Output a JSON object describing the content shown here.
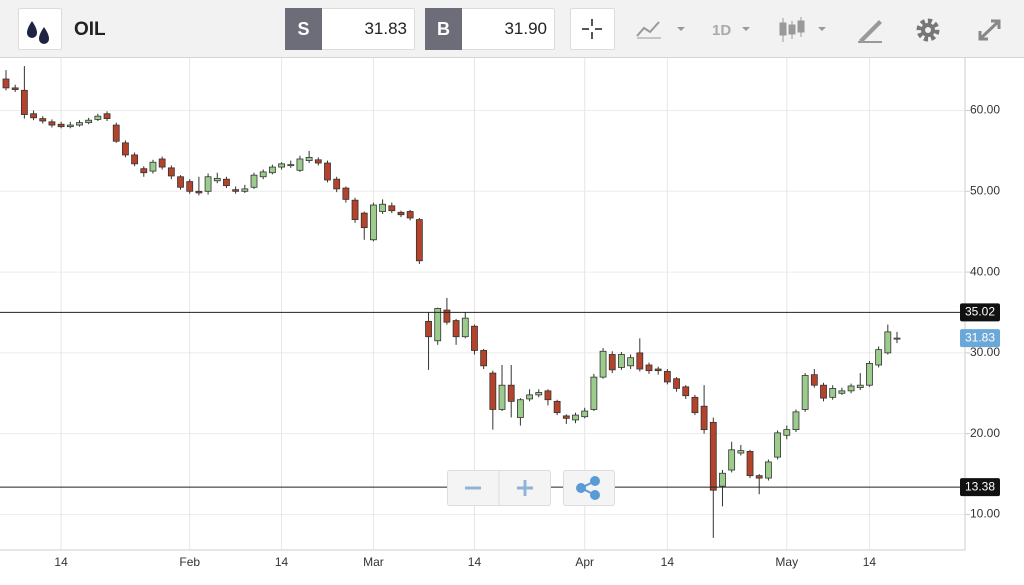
{
  "toolbar": {
    "symbol": "OIL",
    "sell_label": "S",
    "sell_price": "31.83",
    "buy_label": "B",
    "buy_price": "31.90",
    "timeframe": "1D"
  },
  "chart_data": {
    "type": "candlestick",
    "categories": [
      null,
      null,
      null,
      null,
      null,
      null,
      "14",
      null,
      null,
      null,
      null,
      null,
      null,
      null,
      null,
      null,
      null,
      null,
      null,
      null,
      "Feb",
      null,
      null,
      null,
      null,
      null,
      null,
      null,
      null,
      null,
      "14",
      null,
      null,
      null,
      null,
      null,
      null,
      null,
      null,
      null,
      "Mar",
      null,
      null,
      null,
      null,
      null,
      null,
      null,
      null,
      null,
      null,
      "14",
      null,
      null,
      null,
      null,
      null,
      null,
      null,
      null,
      null,
      null,
      null,
      "Apr",
      null,
      null,
      null,
      null,
      null,
      null,
      null,
      null,
      "14",
      null,
      null,
      null,
      null,
      null,
      null,
      null,
      null,
      null,
      null,
      null,
      null,
      "May",
      null,
      null,
      null,
      null,
      null,
      null,
      null,
      null,
      "14",
      null,
      null,
      null
    ],
    "open": [
      63.9,
      62.8,
      62.5,
      59.6,
      59,
      58.6,
      58.3,
      58,
      58.2,
      58.5,
      58.9,
      59.6,
      58.2,
      56,
      54.5,
      52.8,
      52.5,
      54,
      52.9,
      51.8,
      51.2,
      50,
      50,
      51.3,
      51.5,
      50.2,
      50,
      50.5,
      51.8,
      52.3,
      53,
      53.2,
      52.6,
      53.8,
      53.9,
      53.5,
      51.5,
      50.4,
      48.9,
      47.3,
      44,
      47.5,
      48.2,
      47.4,
      47.5,
      46.5,
      33.9,
      31.5,
      35.3,
      34,
      32,
      33.3,
      30.3,
      27.5,
      23,
      26,
      22,
      24.3,
      24.8,
      25.3,
      24,
      22.2,
      21.7,
      22.1,
      23,
      27,
      29.8,
      28.2,
      28.4,
      30,
      28.5,
      28,
      27.7,
      26.8,
      25.8,
      24.5,
      23.4,
      21.4,
      13.5,
      15.5,
      17.6,
      17.8,
      14.8,
      14.5,
      17.1,
      19.8,
      20.5,
      23,
      27.3,
      26,
      24.5,
      25,
      25.3,
      25.7,
      26,
      28.5,
      30,
      31.8
    ],
    "high": [
      65,
      63.2,
      65.5,
      60,
      59.3,
      58.9,
      58.6,
      58.6,
      58.8,
      59.1,
      59.6,
      59.9,
      58.5,
      56.3,
      54.8,
      53.1,
      53.9,
      54.3,
      53.2,
      52,
      51.5,
      51.8,
      52.2,
      52.3,
      51.8,
      50.6,
      50.8,
      52.3,
      52.7,
      53.3,
      53.6,
      53.8,
      54.4,
      55,
      54.2,
      53.8,
      51.8,
      50.6,
      49.2,
      47.5,
      48.6,
      49,
      48.6,
      47.6,
      47.7,
      46.7,
      35,
      35.6,
      36.8,
      34.2,
      35,
      33.5,
      30.5,
      27.8,
      28.5,
      28.5,
      24.4,
      25.5,
      25.5,
      25.5,
      24.2,
      22.4,
      22.6,
      23.2,
      27.4,
      30.6,
      30.2,
      30.1,
      29.8,
      31.8,
      28.8,
      28.3,
      28,
      27,
      26,
      24.8,
      26,
      22,
      15.5,
      19,
      18.6,
      18,
      15,
      16.8,
      20.4,
      21,
      23,
      27.5,
      28,
      26.3,
      26,
      25.7,
      26.2,
      27.5,
      29,
      30.8,
      33.5,
      32.6
    ],
    "low": [
      62.5,
      62.3,
      59,
      58.8,
      58.4,
      57.9,
      57.8,
      57.8,
      58,
      58.3,
      58.7,
      58.7,
      56,
      54.2,
      53.1,
      51.8,
      52.2,
      52.7,
      51.5,
      50.2,
      49.7,
      49.5,
      49.6,
      51,
      50.4,
      49.7,
      49.8,
      50.3,
      51.5,
      52.1,
      52.7,
      52.9,
      52.4,
      53.5,
      53.2,
      51.1,
      49.9,
      48.6,
      46.1,
      44,
      43.8,
      47.2,
      47.3,
      46.8,
      46.4,
      41,
      27.9,
      31,
      33.5,
      31,
      31.8,
      29.8,
      28,
      20.5,
      22.8,
      22,
      21,
      24,
      24.5,
      23.5,
      22.3,
      21.2,
      21.3,
      21.9,
      22.8,
      26.8,
      27.5,
      27.9,
      28,
      27.7,
      27.4,
      27.3,
      26.1,
      25.2,
      24.3,
      22.3,
      20,
      7.1,
      11,
      15.2,
      17.3,
      14.5,
      12.5,
      14.2,
      16.8,
      19.3,
      20.2,
      22.7,
      25.7,
      24,
      24.2,
      24.8,
      25,
      25.4,
      25.8,
      28.2,
      29.8,
      31.2
    ],
    "close": [
      62.8,
      62.6,
      59.5,
      59.1,
      58.7,
      58.2,
      58,
      58.2,
      58.5,
      58.8,
      59.3,
      59,
      56.2,
      54.5,
      53.4,
      52.3,
      53.6,
      53,
      51.9,
      50.5,
      50,
      49.8,
      51.8,
      51.6,
      50.7,
      50,
      50.3,
      52,
      52.4,
      53,
      53.4,
      53.3,
      54,
      54.2,
      53.5,
      51.4,
      50.3,
      49,
      46.5,
      45.5,
      48.3,
      48.4,
      47.6,
      47.1,
      46.7,
      41.4,
      32,
      35.5,
      33.8,
      32,
      34.3,
      30.3,
      28.4,
      23,
      26,
      24,
      24.2,
      24.8,
      25.1,
      24.2,
      22.6,
      21.9,
      22.3,
      22.8,
      27,
      30.2,
      27.9,
      29.8,
      29.4,
      28,
      27.8,
      27.8,
      26.4,
      25.6,
      24.7,
      22.6,
      20.5,
      13,
      15.1,
      18,
      17.9,
      14.8,
      14.5,
      16.5,
      20.1,
      20.5,
      22.7,
      27.2,
      26,
      24.4,
      25.6,
      25.3,
      25.9,
      26,
      28.7,
      30.4,
      32.6,
      31.83
    ],
    "up_color": "#9ccc8c",
    "down_color": "#b5432b",
    "ylim": [
      5.6,
      66.5
    ],
    "yticks": [
      {
        "value": 10,
        "label": "10.00"
      },
      {
        "value": 20,
        "label": "20.00"
      },
      {
        "value": 30,
        "label": "30.00"
      },
      {
        "value": 40,
        "label": "40.00"
      },
      {
        "value": 50,
        "label": "50.00"
      },
      {
        "value": 60,
        "label": "60.00"
      }
    ],
    "grid": true,
    "price_lines": [
      35.02,
      13.38
    ],
    "last_price": 31.83,
    "last_price_color": "#6aa8d8"
  }
}
